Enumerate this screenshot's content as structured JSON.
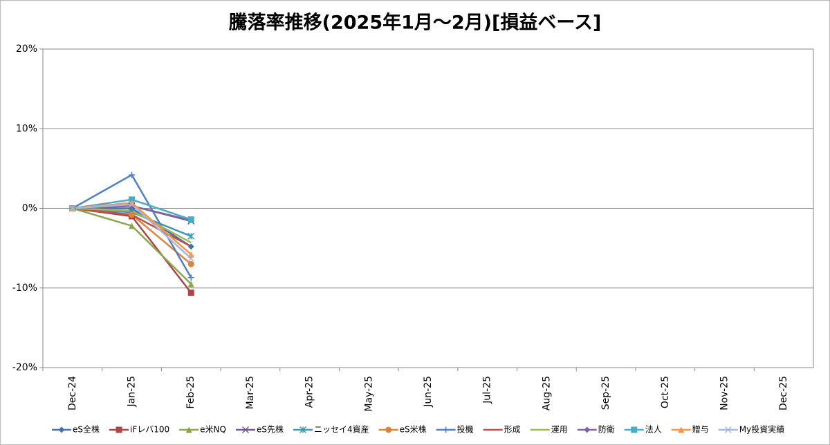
{
  "chart_data": {
    "type": "line",
    "title": "騰落率推移(2025年1月～2月)[損益ベース]",
    "categories": [
      "Dec-24",
      "Jan-25",
      "Feb-25",
      "Mar-25",
      "Apr-25",
      "May-25",
      "Jun-25",
      "Jul-25",
      "Aug-25",
      "Sep-25",
      "Oct-25",
      "Nov-25",
      "Dec-25"
    ],
    "ylim": [
      -20,
      20
    ],
    "yticks": [
      {
        "value": -20,
        "label": "-20%"
      },
      {
        "value": -10,
        "label": "-10%"
      },
      {
        "value": 0,
        "label": "0%"
      },
      {
        "value": 10,
        "label": "10%"
      },
      {
        "value": 20,
        "label": "20%"
      }
    ],
    "grid": true,
    "legend": "bottom",
    "series": [
      {
        "name": "eS全株",
        "color": "#4572A7",
        "marker": "diamond",
        "values": [
          0,
          0.0,
          -4.8,
          null,
          null,
          null,
          null,
          null,
          null,
          null,
          null,
          null,
          null
        ]
      },
      {
        "name": "iFレバ100",
        "color": "#AA4643",
        "marker": "square",
        "values": [
          0,
          -1.0,
          -10.6,
          null,
          null,
          null,
          null,
          null,
          null,
          null,
          null,
          null,
          null
        ]
      },
      {
        "name": "e米NQ",
        "color": "#89A54E",
        "marker": "triangle",
        "values": [
          0,
          -2.2,
          -9.5,
          null,
          null,
          null,
          null,
          null,
          null,
          null,
          null,
          null,
          null
        ]
      },
      {
        "name": "eS先株",
        "color": "#71588F",
        "marker": "x",
        "values": [
          0,
          0.3,
          -1.6,
          null,
          null,
          null,
          null,
          null,
          null,
          null,
          null,
          null,
          null
        ]
      },
      {
        "name": "ニッセイ4資産",
        "color": "#4198AF",
        "marker": "star",
        "values": [
          0,
          -0.5,
          -3.5,
          null,
          null,
          null,
          null,
          null,
          null,
          null,
          null,
          null,
          null
        ]
      },
      {
        "name": "eS米株",
        "color": "#DB843D",
        "marker": "circle",
        "values": [
          0,
          -0.8,
          -7.0,
          null,
          null,
          null,
          null,
          null,
          null,
          null,
          null,
          null,
          null
        ]
      },
      {
        "name": "投機",
        "color": "#4F7FBF",
        "marker": "plus",
        "values": [
          0,
          4.2,
          -8.7,
          null,
          null,
          null,
          null,
          null,
          null,
          null,
          null,
          null,
          null
        ]
      },
      {
        "name": "形成",
        "color": "#C0504D",
        "marker": "none",
        "values": [
          0,
          -0.8,
          -4.8,
          null,
          null,
          null,
          null,
          null,
          null,
          null,
          null,
          null,
          null
        ]
      },
      {
        "name": "運用",
        "color": "#9BBB59",
        "marker": "none",
        "values": [
          0,
          -0.3,
          -4.3,
          null,
          null,
          null,
          null,
          null,
          null,
          null,
          null,
          null,
          null
        ]
      },
      {
        "name": "防衛",
        "color": "#8064A2",
        "marker": "diamond",
        "values": [
          0,
          0.3,
          -1.5,
          null,
          null,
          null,
          null,
          null,
          null,
          null,
          null,
          null,
          null
        ]
      },
      {
        "name": "法人",
        "color": "#4BACC6",
        "marker": "square",
        "values": [
          0,
          1.1,
          -1.4,
          null,
          null,
          null,
          null,
          null,
          null,
          null,
          null,
          null,
          null
        ]
      },
      {
        "name": "贈与",
        "color": "#F79646",
        "marker": "triangle",
        "values": [
          0,
          0.7,
          -5.8,
          null,
          null,
          null,
          null,
          null,
          null,
          null,
          null,
          null,
          null
        ]
      },
      {
        "name": "My投資実績",
        "color": "#A5B6E0",
        "marker": "x",
        "values": [
          0,
          0.5,
          -6.3,
          null,
          null,
          null,
          null,
          null,
          null,
          null,
          null,
          null,
          null
        ]
      }
    ]
  }
}
